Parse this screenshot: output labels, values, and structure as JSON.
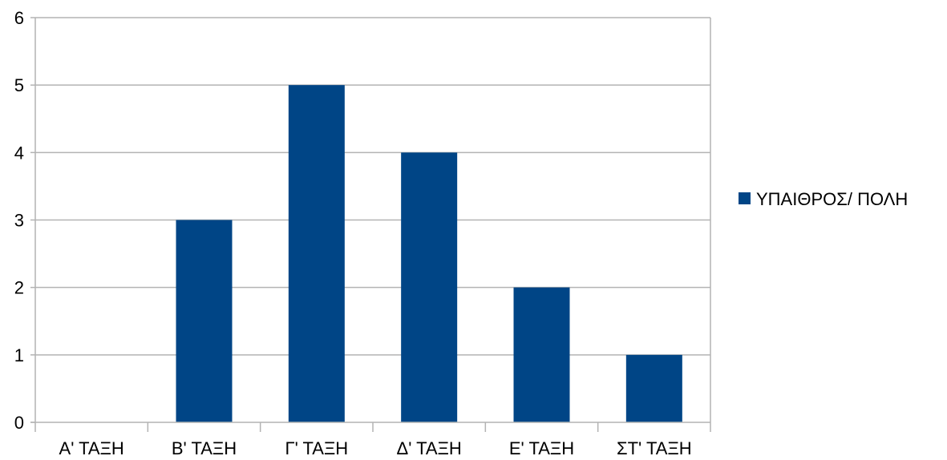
{
  "chart_data": {
    "type": "bar",
    "title": "",
    "xlabel": "",
    "ylabel": "",
    "categories": [
      "Α' ΤΑΞΗ",
      "Β' ΤΑΞΗ",
      "Γ' ΤΑΞΗ",
      "Δ' ΤΑΞΗ",
      "Ε' ΤΑΞΗ",
      "ΣΤ' ΤΑΞΗ"
    ],
    "series": [
      {
        "name": "ΥΠΑΙΘΡΟΣ/ ΠΟΛΗ",
        "values": [
          0,
          3,
          5,
          4,
          2,
          1
        ],
        "color": "#004586"
      }
    ],
    "ylim": [
      0,
      6
    ],
    "yticks": [
      "0",
      "1",
      "2",
      "3",
      "4",
      "5",
      "6"
    ],
    "grid": true,
    "legend_position": "right",
    "colors": {
      "grid": "#b3b3b3",
      "axis": "#b3b3b3",
      "bar": "#004586"
    }
  }
}
